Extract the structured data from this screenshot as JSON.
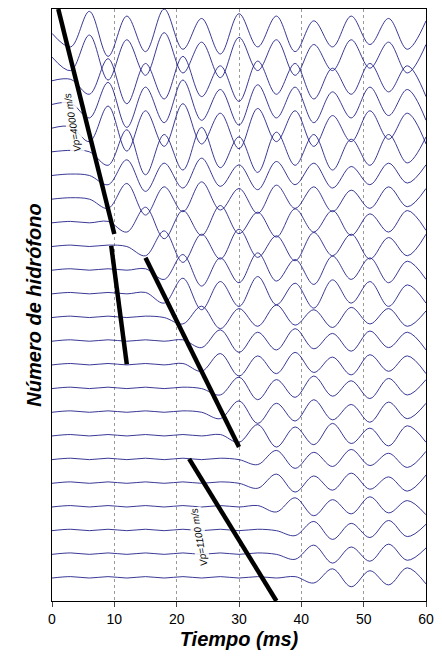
{
  "chart_data": {
    "type": "line",
    "x_label": "Tiempo (ms)",
    "y_label": "Número de hidrófono",
    "color": "#22228a",
    "xlim": [
      0,
      60
    ],
    "xticks": [
      0,
      10,
      20,
      30,
      40,
      50,
      60
    ],
    "ylim": [
      25,
      0
    ],
    "grid": true,
    "tick_labels": "x",
    "x": [
      0,
      3,
      6,
      9,
      12,
      15,
      18,
      21,
      24,
      27,
      30,
      33,
      36,
      39,
      42,
      45,
      48,
      51,
      54,
      57,
      60
    ],
    "series": [
      {
        "values": [
          1.03,
          1.6,
          0.1,
          2.0,
          0.3,
          1.8,
          0.0,
          1.7,
          0.4,
          1.9,
          0.2,
          1.6,
          0.3,
          1.8,
          0.5,
          1.6,
          0.3,
          1.5,
          0.4,
          1.7,
          0.5
        ]
      },
      {
        "values": [
          2.03,
          2.6,
          1.1,
          3.0,
          1.3,
          2.8,
          1.0,
          2.7,
          1.4,
          2.9,
          1.2,
          2.6,
          1.3,
          2.8,
          1.5,
          2.6,
          1.3,
          2.5,
          1.4,
          2.7,
          1.5
        ]
      },
      {
        "values": [
          3.03,
          2.97,
          3.6,
          2.1,
          4.0,
          2.3,
          3.8,
          2.0,
          3.7,
          2.4,
          3.9,
          2.2,
          3.6,
          2.3,
          3.8,
          2.5,
          3.6,
          2.3,
          3.5,
          2.4,
          3.7
        ]
      },
      {
        "values": [
          4.03,
          3.97,
          4.6,
          3.1,
          5.0,
          3.3,
          4.8,
          3.0,
          4.7,
          3.4,
          4.9,
          3.2,
          4.6,
          3.3,
          4.8,
          3.5,
          4.6,
          3.3,
          4.5,
          3.4,
          4.7
        ]
      },
      {
        "values": [
          5.03,
          4.97,
          5.6,
          4.1,
          6.0,
          4.3,
          5.8,
          4.0,
          5.7,
          4.4,
          5.9,
          4.2,
          5.6,
          4.3,
          5.8,
          4.5,
          5.6,
          4.3,
          5.5,
          4.4,
          5.7
        ]
      },
      {
        "values": [
          6.03,
          5.97,
          6.03,
          6.6,
          5.1,
          7.0,
          5.3,
          6.8,
          5.0,
          6.7,
          5.4,
          6.9,
          5.2,
          6.6,
          5.3,
          6.8,
          5.5,
          6.6,
          5.3,
          6.5,
          5.4
        ]
      },
      {
        "values": [
          7.03,
          6.97,
          7.03,
          7.42,
          6.37,
          7.7,
          6.51,
          7.56,
          6.3,
          7.49,
          6.58,
          7.63,
          6.44,
          7.42,
          6.51,
          7.56,
          6.65,
          7.42,
          6.51,
          7.35,
          6.58
        ]
      },
      {
        "values": [
          8.03,
          7.97,
          8.03,
          8.42,
          7.37,
          8.7,
          7.51,
          8.56,
          7.3,
          8.49,
          7.58,
          8.63,
          7.44,
          8.42,
          7.51,
          8.56,
          7.65,
          8.42,
          7.51,
          8.35,
          7.58
        ]
      },
      {
        "values": [
          9.03,
          8.97,
          9.03,
          8.97,
          9.42,
          8.37,
          9.7,
          8.51,
          9.56,
          8.3,
          9.49,
          8.58,
          9.63,
          8.44,
          9.42,
          8.51,
          9.56,
          8.65,
          9.42,
          8.51,
          9.35
        ]
      },
      {
        "values": [
          10.03,
          9.97,
          10.03,
          9.97,
          10.03,
          10.42,
          9.37,
          10.7,
          9.51,
          10.56,
          9.3,
          10.49,
          9.58,
          10.63,
          9.44,
          10.42,
          9.51,
          10.56,
          9.65,
          10.42,
          9.51
        ]
      },
      {
        "values": [
          11.03,
          10.97,
          11.03,
          10.97,
          11.03,
          10.97,
          11.42,
          10.37,
          11.7,
          10.51,
          11.56,
          10.3,
          11.49,
          10.58,
          11.63,
          10.44,
          11.42,
          10.51,
          11.56,
          10.65,
          11.42
        ]
      },
      {
        "values": [
          12.03,
          11.97,
          12.03,
          11.97,
          12.03,
          11.97,
          12.42,
          11.37,
          12.7,
          11.51,
          12.56,
          11.3,
          12.49,
          11.58,
          12.63,
          11.44,
          12.42,
          11.51,
          12.56,
          11.65,
          12.42
        ]
      },
      {
        "values": [
          13.03,
          12.97,
          13.03,
          12.97,
          13.03,
          12.97,
          13.03,
          13.3,
          12.55,
          13.5,
          12.65,
          13.4,
          12.5,
          13.35,
          12.7,
          13.45,
          12.6,
          13.3,
          12.65,
          13.4,
          12.75
        ]
      },
      {
        "values": [
          14.03,
          13.97,
          14.03,
          13.97,
          14.03,
          13.97,
          14.03,
          13.97,
          14.3,
          13.55,
          14.5,
          13.65,
          14.4,
          13.5,
          14.35,
          13.7,
          14.45,
          13.6,
          14.3,
          13.65,
          14.4
        ]
      },
      {
        "values": [
          15.03,
          14.97,
          15.03,
          14.97,
          15.03,
          14.97,
          15.03,
          14.97,
          15.3,
          14.55,
          15.5,
          14.65,
          15.4,
          14.5,
          15.35,
          14.7,
          15.45,
          14.6,
          15.3,
          14.65,
          15.4
        ]
      },
      {
        "values": [
          16.03,
          15.97,
          16.03,
          15.97,
          16.03,
          15.97,
          16.03,
          15.97,
          16.03,
          16.3,
          15.55,
          16.5,
          15.65,
          16.4,
          15.5,
          16.35,
          15.7,
          16.45,
          15.6,
          16.3,
          15.65
        ]
      },
      {
        "values": [
          17.03,
          16.97,
          17.03,
          16.97,
          17.03,
          16.97,
          17.03,
          16.97,
          17.03,
          17.3,
          16.55,
          17.5,
          16.65,
          17.4,
          16.5,
          17.35,
          16.7,
          17.45,
          16.6,
          17.3,
          16.65
        ]
      },
      {
        "values": [
          18.03,
          17.97,
          18.03,
          17.97,
          18.03,
          17.97,
          18.03,
          17.97,
          18.03,
          17.97,
          18.3,
          17.55,
          18.5,
          17.65,
          18.4,
          17.5,
          18.35,
          17.7,
          18.45,
          17.6,
          18.3
        ]
      },
      {
        "values": [
          19.03,
          18.97,
          19.03,
          18.97,
          19.03,
          18.97,
          19.03,
          18.97,
          19.03,
          18.97,
          19.03,
          19.24,
          18.64,
          19.4,
          18.72,
          19.32,
          18.6,
          19.28,
          18.76,
          19.36,
          18.68
        ]
      },
      {
        "values": [
          20.03,
          19.97,
          20.03,
          19.97,
          20.03,
          19.97,
          20.03,
          19.97,
          20.03,
          19.97,
          20.03,
          20.24,
          19.64,
          20.4,
          19.72,
          20.32,
          19.6,
          20.28,
          19.76,
          20.36,
          19.68
        ]
      },
      {
        "values": [
          21.03,
          20.97,
          21.03,
          20.97,
          21.03,
          20.97,
          21.03,
          20.97,
          21.03,
          20.97,
          21.03,
          20.97,
          21.24,
          20.64,
          21.4,
          20.72,
          21.32,
          20.6,
          21.28,
          20.76,
          21.36
        ]
      },
      {
        "values": [
          22.03,
          21.97,
          22.03,
          21.97,
          22.03,
          21.97,
          22.03,
          21.97,
          22.03,
          21.97,
          22.03,
          21.97,
          22.03,
          22.24,
          21.64,
          22.4,
          21.72,
          22.32,
          21.6,
          22.28,
          21.76
        ]
      },
      {
        "values": [
          23.03,
          22.97,
          23.03,
          22.97,
          23.03,
          22.97,
          23.03,
          22.97,
          23.03,
          22.97,
          23.03,
          22.97,
          23.03,
          23.24,
          22.64,
          23.4,
          22.72,
          23.32,
          22.6,
          23.28,
          22.76
        ]
      },
      {
        "values": [
          24.03,
          23.97,
          24.03,
          23.97,
          24.03,
          23.97,
          24.03,
          23.97,
          24.03,
          23.97,
          24.03,
          23.97,
          24.03,
          23.97,
          24.24,
          23.64,
          24.4,
          23.72,
          24.32,
          23.6,
          24.28
        ]
      }
    ],
    "picks": [
      {
        "x": [
          1,
          10
        ],
        "y": [
          0,
          9.5
        ],
        "color": "#000000"
      },
      {
        "x": [
          9.5,
          12
        ],
        "y": [
          10,
          15
        ],
        "color": "#000000"
      },
      {
        "x": [
          15,
          30
        ],
        "y": [
          10.5,
          18.5
        ],
        "color": "#000000"
      },
      {
        "x": [
          22,
          36
        ],
        "y": [
          19,
          25
        ],
        "color": "#000000"
      }
    ],
    "annotations": [
      {
        "text": "Vp=4000 m/s",
        "x": 3.3,
        "y": 4.8
      },
      {
        "text": "Vp=1100 m/s",
        "x": 23.5,
        "y": 22.3
      }
    ]
  }
}
